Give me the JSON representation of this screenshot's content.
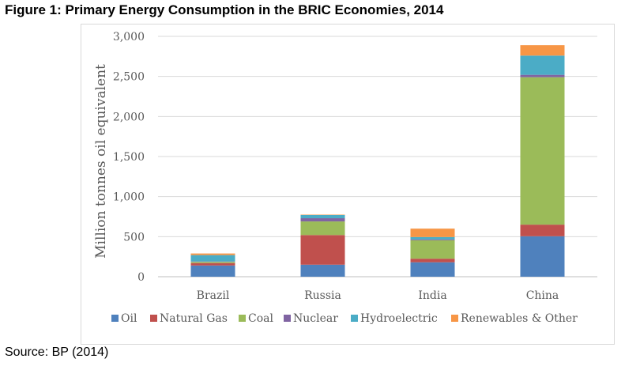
{
  "figure_title": "Figure 1: Primary Energy Consumption in the BRIC Economies, 2014",
  "source": "Source: BP (2014)",
  "chart_data": {
    "type": "bar",
    "stacked": true,
    "title": "",
    "xlabel": "",
    "ylabel": "Million tonnes oil equivalent",
    "ylim": [
      0,
      3000
    ],
    "yticks": [
      0,
      500,
      1000,
      1500,
      2000,
      2500,
      3000
    ],
    "ytick_labels": [
      "0",
      "500",
      "1,000",
      "1,500",
      "2,000",
      "2,500",
      "3,000"
    ],
    "grid": true,
    "legend_position": "bottom",
    "categories": [
      "Brazil",
      "Russia",
      "India",
      "China"
    ],
    "series": [
      {
        "name": "Oil",
        "color": "#4f81bd",
        "values": [
          140,
          150,
          180,
          505
        ]
      },
      {
        "name": "Natural Gas",
        "color": "#c0504d",
        "values": [
          30,
          370,
          45,
          145
        ]
      },
      {
        "name": "Coal",
        "color": "#9bbb59",
        "values": [
          15,
          170,
          230,
          1840
        ]
      },
      {
        "name": "Nuclear",
        "color": "#8064a2",
        "values": [
          5,
          40,
          10,
          30
        ]
      },
      {
        "name": "Hydroelectric",
        "color": "#4bacc6",
        "values": [
          80,
          40,
          30,
          240
        ]
      },
      {
        "name": "Renewables & Other",
        "color": "#f79646",
        "values": [
          20,
          5,
          105,
          130
        ]
      }
    ]
  }
}
